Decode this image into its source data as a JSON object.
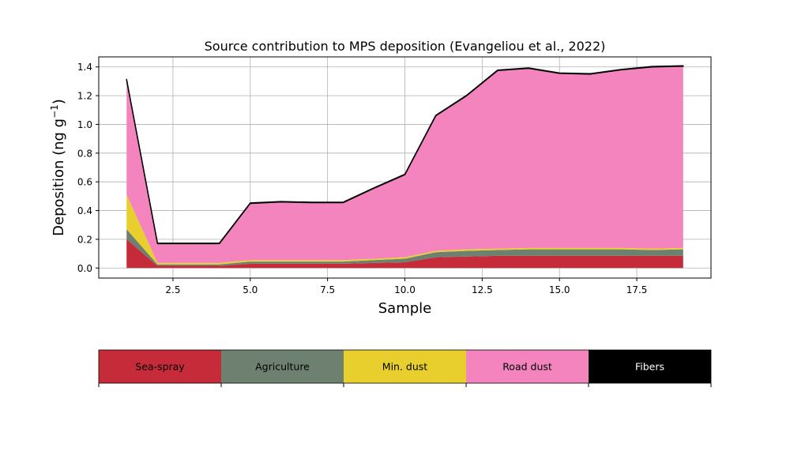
{
  "chart_data": {
    "type": "area",
    "stacked": true,
    "title": "Source contribution to MPS deposition (Evangeliou et al., 2022)",
    "xlabel": "Sample",
    "ylabel": "Deposition (ng g",
    "ylabel_sup": "−1",
    "ylabel_close": ")",
    "xlim": [
      0.1,
      19.9
    ],
    "ylim": [
      -0.07,
      1.47
    ],
    "xticks": [
      2.5,
      5.0,
      7.5,
      10.0,
      12.5,
      15.0,
      17.5
    ],
    "xtick_labels": [
      "2.5",
      "5.0",
      "7.5",
      "10.0",
      "12.5",
      "15.0",
      "17.5"
    ],
    "yticks": [
      0.0,
      0.2,
      0.4,
      0.6,
      0.8,
      1.0,
      1.2,
      1.4
    ],
    "ytick_labels": [
      "0.0",
      "0.2",
      "0.4",
      "0.6",
      "0.8",
      "1.0",
      "1.2",
      "1.4"
    ],
    "grid": true,
    "x": [
      1,
      2,
      3,
      4,
      5,
      6,
      7,
      8,
      9,
      10,
      11,
      12,
      13,
      14,
      15,
      16,
      17,
      18,
      19
    ],
    "series": [
      {
        "name": "Sea-spray",
        "color": "#c62b39",
        "values": [
          0.2,
          0.015,
          0.015,
          0.015,
          0.03,
          0.03,
          0.03,
          0.03,
          0.035,
          0.04,
          0.075,
          0.08,
          0.085,
          0.085,
          0.085,
          0.085,
          0.085,
          0.085,
          0.085
        ]
      },
      {
        "name": "Agriculture",
        "color": "#6e8070",
        "values": [
          0.07,
          0.01,
          0.01,
          0.01,
          0.015,
          0.015,
          0.015,
          0.015,
          0.02,
          0.025,
          0.035,
          0.04,
          0.04,
          0.045,
          0.045,
          0.045,
          0.045,
          0.04,
          0.045
        ]
      },
      {
        "name": "Min. dust",
        "color": "#e8cf2e",
        "values": [
          0.24,
          0.01,
          0.01,
          0.01,
          0.01,
          0.01,
          0.01,
          0.01,
          0.01,
          0.01,
          0.01,
          0.01,
          0.01,
          0.01,
          0.01,
          0.01,
          0.01,
          0.01,
          0.01
        ]
      },
      {
        "name": "Road dust",
        "color": "#f484bd",
        "values": [
          0.8,
          0.135,
          0.135,
          0.135,
          0.395,
          0.405,
          0.4,
          0.4,
          0.49,
          0.575,
          0.94,
          1.07,
          1.24,
          1.25,
          1.215,
          1.21,
          1.24,
          1.265,
          1.265
        ]
      },
      {
        "name": "Fibers",
        "color": "#000000",
        "values": [
          0.003,
          0.003,
          0.003,
          0.003,
          0.003,
          0.003,
          0.003,
          0.003,
          0.003,
          0.003,
          0.003,
          0.003,
          0.003,
          0.003,
          0.003,
          0.003,
          0.003,
          0.003,
          0.003
        ]
      }
    ],
    "legend": [
      {
        "label": "Sea-spray",
        "color": "#c62b39",
        "text_color": "#000000"
      },
      {
        "label": "Agriculture",
        "color": "#6e8070",
        "text_color": "#000000"
      },
      {
        "label": "Min. dust",
        "color": "#e8cf2e",
        "text_color": "#000000"
      },
      {
        "label": "Road dust",
        "color": "#f484bd",
        "text_color": "#000000"
      },
      {
        "label": "Fibers",
        "color": "#000000",
        "text_color": "#ffffff"
      }
    ],
    "legend_placement": "bottom"
  }
}
